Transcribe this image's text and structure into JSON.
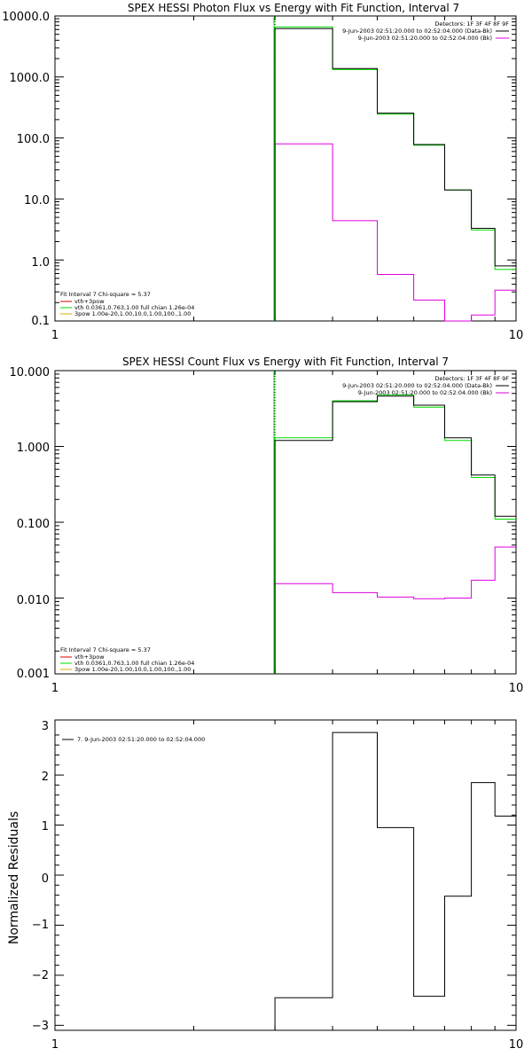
{
  "chart_data": [
    {
      "type": "line",
      "title": "SPEX HESSI Photon Flux vs Energy with Fit Function, Interval 7",
      "xlabel": "",
      "ylabel": "",
      "x_scale": "log",
      "y_scale": "log",
      "xlim": [
        1,
        10
      ],
      "ylim": [
        0.1,
        10000
      ],
      "x_tick_labels": [
        "1",
        "10"
      ],
      "y_ticks": [
        0.1,
        1,
        10,
        100,
        1000,
        10000
      ],
      "y_tick_labels": [
        "0.1",
        "1.0",
        "10.0",
        "100.0",
        "1000.0",
        "10000.0"
      ],
      "grid": false,
      "marker_line_x": 3.0,
      "bin_edges": [
        3.0,
        4.0,
        5.0,
        6.0,
        7.0,
        8.0,
        9.0,
        10.0
      ],
      "series": [
        {
          "role": "data",
          "color": "#000000",
          "values": [
            6200,
            1380,
            255,
            78,
            14,
            3.3,
            0.8
          ]
        },
        {
          "role": "fit",
          "color": "#00dd00",
          "values": [
            6600,
            1320,
            245,
            76,
            14,
            3.1,
            0.7
          ]
        },
        {
          "role": "background",
          "color": "#dd00dd",
          "values": [
            80,
            4.4,
            0.58,
            0.22,
            0.098,
            0.125,
            0.32
          ]
        }
      ],
      "legend_top_right": {
        "line1": "Detectors: 1F 3F 4F 8F 9F",
        "line2": "9-Jun-2003 02:51:20.000 to 02:52:04.000 (Data-Bk)",
        "line3": "9-Jun-2003 02:51:20.000 to 02:52:04.000 (Bk)"
      },
      "legend_bottom_left": {
        "header": "Fit Interval 7   Chi-square = 5.37",
        "line1": "vth+3pow",
        "line2": "vth 0.0361,0.763,1.00  full chian 1.26e-04",
        "line3": "3pow 1.00e-20,1.00,10.0,1.00,100.,1.00"
      }
    },
    {
      "type": "line",
      "title": "SPEX HESSI Count Flux vs Energy with Fit Function, Interval 7",
      "xlabel": "",
      "ylabel": "",
      "x_scale": "log",
      "y_scale": "log",
      "xlim": [
        1,
        10
      ],
      "ylim": [
        0.001,
        10
      ],
      "x_tick_labels": [
        "1",
        "10"
      ],
      "y_ticks": [
        0.001,
        0.01,
        0.1,
        1,
        10
      ],
      "y_tick_labels": [
        "0.001",
        "0.010",
        "0.100",
        "1.000",
        "10.000"
      ],
      "grid": false,
      "marker_line_x": 3.0,
      "bin_edges": [
        3.0,
        4.0,
        5.0,
        6.0,
        7.0,
        8.0,
        9.0,
        10.0
      ],
      "series": [
        {
          "role": "data",
          "color": "#000000",
          "values": [
            1.2,
            3.9,
            4.6,
            3.5,
            1.3,
            0.42,
            0.12
          ]
        },
        {
          "role": "fit",
          "color": "#00dd00",
          "values": [
            1.3,
            4.0,
            4.8,
            3.3,
            1.2,
            0.39,
            0.11
          ]
        },
        {
          "role": "background",
          "color": "#dd00dd",
          "values": [
            0.0155,
            0.0118,
            0.0103,
            0.0098,
            0.01,
            0.0172,
            0.047
          ]
        }
      ],
      "legend_top_right": {
        "line1": "Detectors: 1F 3F 4F 8F 9F",
        "line2": "9-Jun-2003 02:51:20.000 to 02:52:04.000 (Data-Bk)",
        "line3": "9-Jun-2003 02:51:20.000 to 02:52:04.000 (Bk)"
      },
      "legend_bottom_left": {
        "header": "Fit Interval 7   Chi-square = 5.37",
        "line1": "vth+3pow",
        "line2": "vth 0.0361,0.763,1.00  full chian 1.26e-04",
        "line3": "3pow 1.00e-20,1.00,10.0,1.00,100.,1.00"
      }
    },
    {
      "type": "line",
      "title": "",
      "xlabel": "",
      "ylabel": "Normalized Residuals",
      "x_scale": "log",
      "y_scale": "linear",
      "xlim": [
        1,
        10
      ],
      "ylim": [
        -3.1,
        3.1
      ],
      "x_tick_labels": [
        "1",
        "10"
      ],
      "y_ticks": [
        -3,
        -2,
        -1,
        0,
        1,
        2,
        3
      ],
      "y_tick_labels": [
        "−3",
        "−2",
        "−1",
        "0",
        "1",
        "2",
        "3"
      ],
      "grid": false,
      "bin_edges": [
        3.0,
        4.0,
        5.0,
        6.0,
        7.0,
        8.0,
        9.0,
        10.0
      ],
      "series": [
        {
          "role": "residuals",
          "color": "#000000",
          "values": [
            -2.45,
            2.85,
            0.95,
            -2.42,
            -0.42,
            1.85,
            1.18
          ]
        }
      ],
      "legend_top_left": {
        "line1": "7. 9-Jun-2003 02:51:20.000 to 02:52:04.000"
      }
    }
  ]
}
